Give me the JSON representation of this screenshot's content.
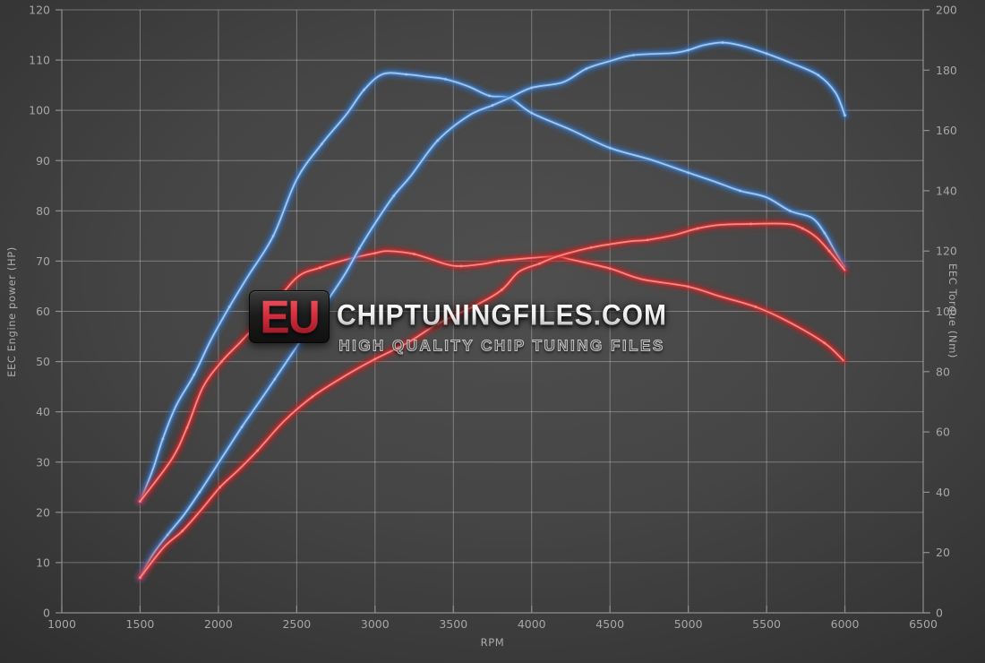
{
  "watermark": {
    "logo": "EU",
    "title": "CHIPTUNINGFILES.COM",
    "subtitle": "HIGH QUALITY CHIP TUNING FILES"
  },
  "chart_data": {
    "type": "line",
    "title": "",
    "xlabel": "RPM",
    "ylabel_left": "EEC Engine power (HP)",
    "ylabel_right": "EEC Torque (Nm)",
    "x_range": [
      1000,
      6500
    ],
    "y_left_range": [
      0,
      120
    ],
    "y_right_range": [
      0,
      200
    ],
    "x_ticks": [
      1000,
      1500,
      2000,
      2500,
      3000,
      3500,
      4000,
      4500,
      5000,
      5500,
      6000,
      6500
    ],
    "y_left_ticks": [
      0,
      10,
      20,
      30,
      40,
      50,
      60,
      70,
      80,
      90,
      100,
      110,
      120
    ],
    "y_right_ticks": [
      0,
      20,
      40,
      60,
      80,
      100,
      120,
      140,
      160,
      180,
      200
    ],
    "grid": true,
    "legend": "none",
    "series": [
      {
        "name": "torque-tuned",
        "axis": "right",
        "units": "Nm",
        "color_key": "blue",
        "points": [
          [
            1500,
            37
          ],
          [
            1580,
            47.3
          ],
          [
            1645,
            57.7
          ],
          [
            1730,
            68.7
          ],
          [
            1845,
            79
          ],
          [
            1950,
            90.3
          ],
          [
            2070,
            101.5
          ],
          [
            2190,
            111.7
          ],
          [
            2350,
            125
          ],
          [
            2500,
            143.8
          ],
          [
            2660,
            155.5
          ],
          [
            2820,
            165.5
          ],
          [
            2930,
            173.5
          ],
          [
            3050,
            178.7
          ],
          [
            3200,
            178.6
          ],
          [
            3330,
            177.8
          ],
          [
            3450,
            177
          ],
          [
            3600,
            174.5
          ],
          [
            3730,
            171.5
          ],
          [
            3860,
            170.8
          ],
          [
            4000,
            165.8
          ],
          [
            4250,
            160.2
          ],
          [
            4500,
            154.2
          ],
          [
            4760,
            150.3
          ],
          [
            5000,
            146
          ],
          [
            5170,
            143
          ],
          [
            5330,
            140
          ],
          [
            5500,
            137.8
          ],
          [
            5650,
            133.3
          ],
          [
            5790,
            131
          ],
          [
            5870,
            126
          ],
          [
            5930,
            120.5
          ],
          [
            5995,
            114.8
          ]
        ]
      },
      {
        "name": "torque-original",
        "axis": "right",
        "units": "Nm",
        "color_key": "red",
        "points": [
          [
            1500,
            37
          ],
          [
            1700,
            50.8
          ],
          [
            1800,
            61.5
          ],
          [
            1900,
            74.7
          ],
          [
            2020,
            83.3
          ],
          [
            2150,
            90.3
          ],
          [
            2320,
            100
          ],
          [
            2500,
            111.2
          ],
          [
            2650,
            114.5
          ],
          [
            2820,
            117.2
          ],
          [
            3000,
            119.3
          ],
          [
            3080,
            120
          ],
          [
            3250,
            119
          ],
          [
            3450,
            115.7
          ],
          [
            3550,
            115
          ],
          [
            3700,
            115.8
          ],
          [
            3790,
            116.7
          ],
          [
            4000,
            117.7
          ],
          [
            4160,
            118.2
          ],
          [
            4250,
            117.2
          ],
          [
            4500,
            114.2
          ],
          [
            4700,
            110.7
          ],
          [
            5000,
            108.2
          ],
          [
            5200,
            105
          ],
          [
            5430,
            101.5
          ],
          [
            5630,
            96.8
          ],
          [
            5870,
            89.5
          ],
          [
            5990,
            83.7
          ]
        ]
      },
      {
        "name": "power-tuned",
        "axis": "left",
        "units": "HP",
        "color_key": "blue",
        "points": [
          [
            1500,
            7
          ],
          [
            1580,
            11.5
          ],
          [
            1675,
            15.5
          ],
          [
            1780,
            19.5
          ],
          [
            1880,
            24
          ],
          [
            2025,
            31
          ],
          [
            2150,
            37
          ],
          [
            2250,
            41.5
          ],
          [
            2360,
            46.5
          ],
          [
            2500,
            53
          ],
          [
            2650,
            60
          ],
          [
            2800,
            67
          ],
          [
            2900,
            72.5
          ],
          [
            3000,
            77.5
          ],
          [
            3120,
            83
          ],
          [
            3230,
            87
          ],
          [
            3400,
            94
          ],
          [
            3600,
            99
          ],
          [
            3750,
            101
          ],
          [
            3860,
            102.5
          ],
          [
            4000,
            104.5
          ],
          [
            4200,
            105.6
          ],
          [
            4350,
            108.3
          ],
          [
            4500,
            109.8
          ],
          [
            4650,
            111
          ],
          [
            4900,
            111.4
          ],
          [
            5000,
            112
          ],
          [
            5100,
            113
          ],
          [
            5220,
            113.5
          ],
          [
            5350,
            112.8
          ],
          [
            5500,
            111.3
          ],
          [
            5650,
            109.5
          ],
          [
            5830,
            107
          ],
          [
            5940,
            103.5
          ],
          [
            6000,
            99
          ]
        ]
      },
      {
        "name": "power-original",
        "axis": "left",
        "units": "HP",
        "color_key": "red",
        "points": [
          [
            1500,
            7
          ],
          [
            1650,
            13
          ],
          [
            1770,
            16.3
          ],
          [
            1890,
            20.5
          ],
          [
            2010,
            25
          ],
          [
            2130,
            28.5
          ],
          [
            2250,
            32.3
          ],
          [
            2420,
            38.2
          ],
          [
            2600,
            43
          ],
          [
            2800,
            47
          ],
          [
            3000,
            50.5
          ],
          [
            3200,
            53.6
          ],
          [
            3400,
            57.5
          ],
          [
            3650,
            61.3
          ],
          [
            3810,
            64.3
          ],
          [
            3920,
            67.9
          ],
          [
            4050,
            69.5
          ],
          [
            4160,
            70.9
          ],
          [
            4380,
            72.7
          ],
          [
            4620,
            73.9
          ],
          [
            4740,
            74.2
          ],
          [
            4910,
            75.2
          ],
          [
            5060,
            76.5
          ],
          [
            5200,
            77.2
          ],
          [
            5400,
            77.4
          ],
          [
            5630,
            77.4
          ],
          [
            5730,
            76.5
          ],
          [
            5820,
            74.7
          ],
          [
            5900,
            72
          ],
          [
            6000,
            68.2
          ]
        ]
      }
    ],
    "colors": {
      "blue_glow": "#2d6fc4",
      "blue_mid": "#4d8fd6",
      "blue_core": "#a6c9ef",
      "red_glow": "#c51f1f",
      "red_mid": "#e03434",
      "red_core": "#f58c8c",
      "grid": "rgba(255,255,255,0.30)",
      "axis_line": "#8f8f8f",
      "tick_label": "#a6a6a6",
      "background_center": "#4f4f4f",
      "background_edge": "#2d2d2d"
    }
  }
}
